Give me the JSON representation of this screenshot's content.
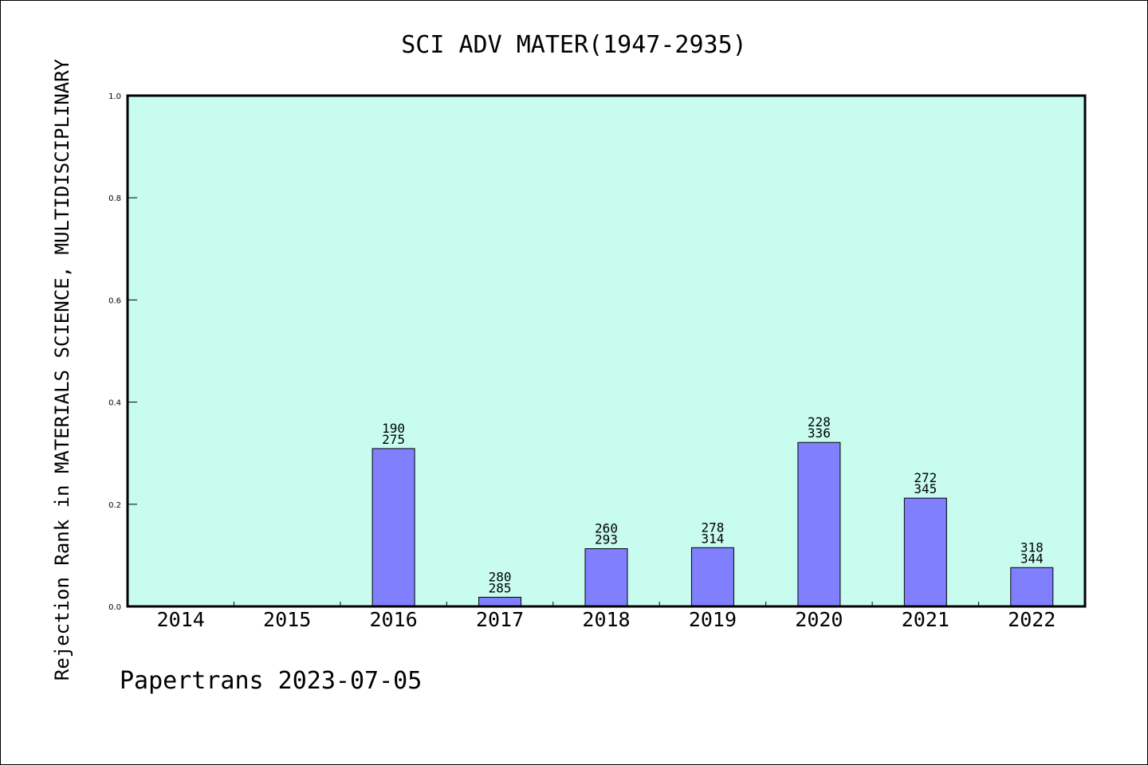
{
  "chart_data": {
    "type": "bar",
    "title": "SCI ADV MATER(1947-2935)",
    "ylabel": "Rejection Rank in MATERIALS SCIENCE, MULTIDISCIPLINARY",
    "xlabel": "",
    "ylim": [
      0,
      1.0
    ],
    "yticks": [
      "0.0",
      "0.2",
      "0.4",
      "0.6",
      "0.8",
      "1.0"
    ],
    "categories": [
      "2014",
      "2015",
      "2016",
      "2017",
      "2018",
      "2019",
      "2020",
      "2021",
      "2022"
    ],
    "values": [
      null,
      null,
      0.309,
      0.018,
      0.113,
      0.115,
      0.321,
      0.212,
      0.076
    ],
    "labels_rank": [
      null,
      null,
      "190",
      "280",
      "260",
      "278",
      "228",
      "272",
      "318"
    ],
    "labels_total": [
      null,
      null,
      "275",
      "285",
      "293",
      "314",
      "336",
      "345",
      "344"
    ],
    "bar_color": "#8080ff",
    "plot_background": "#c8fcee",
    "grid": false
  },
  "footer": "Papertrans 2023-07-05"
}
